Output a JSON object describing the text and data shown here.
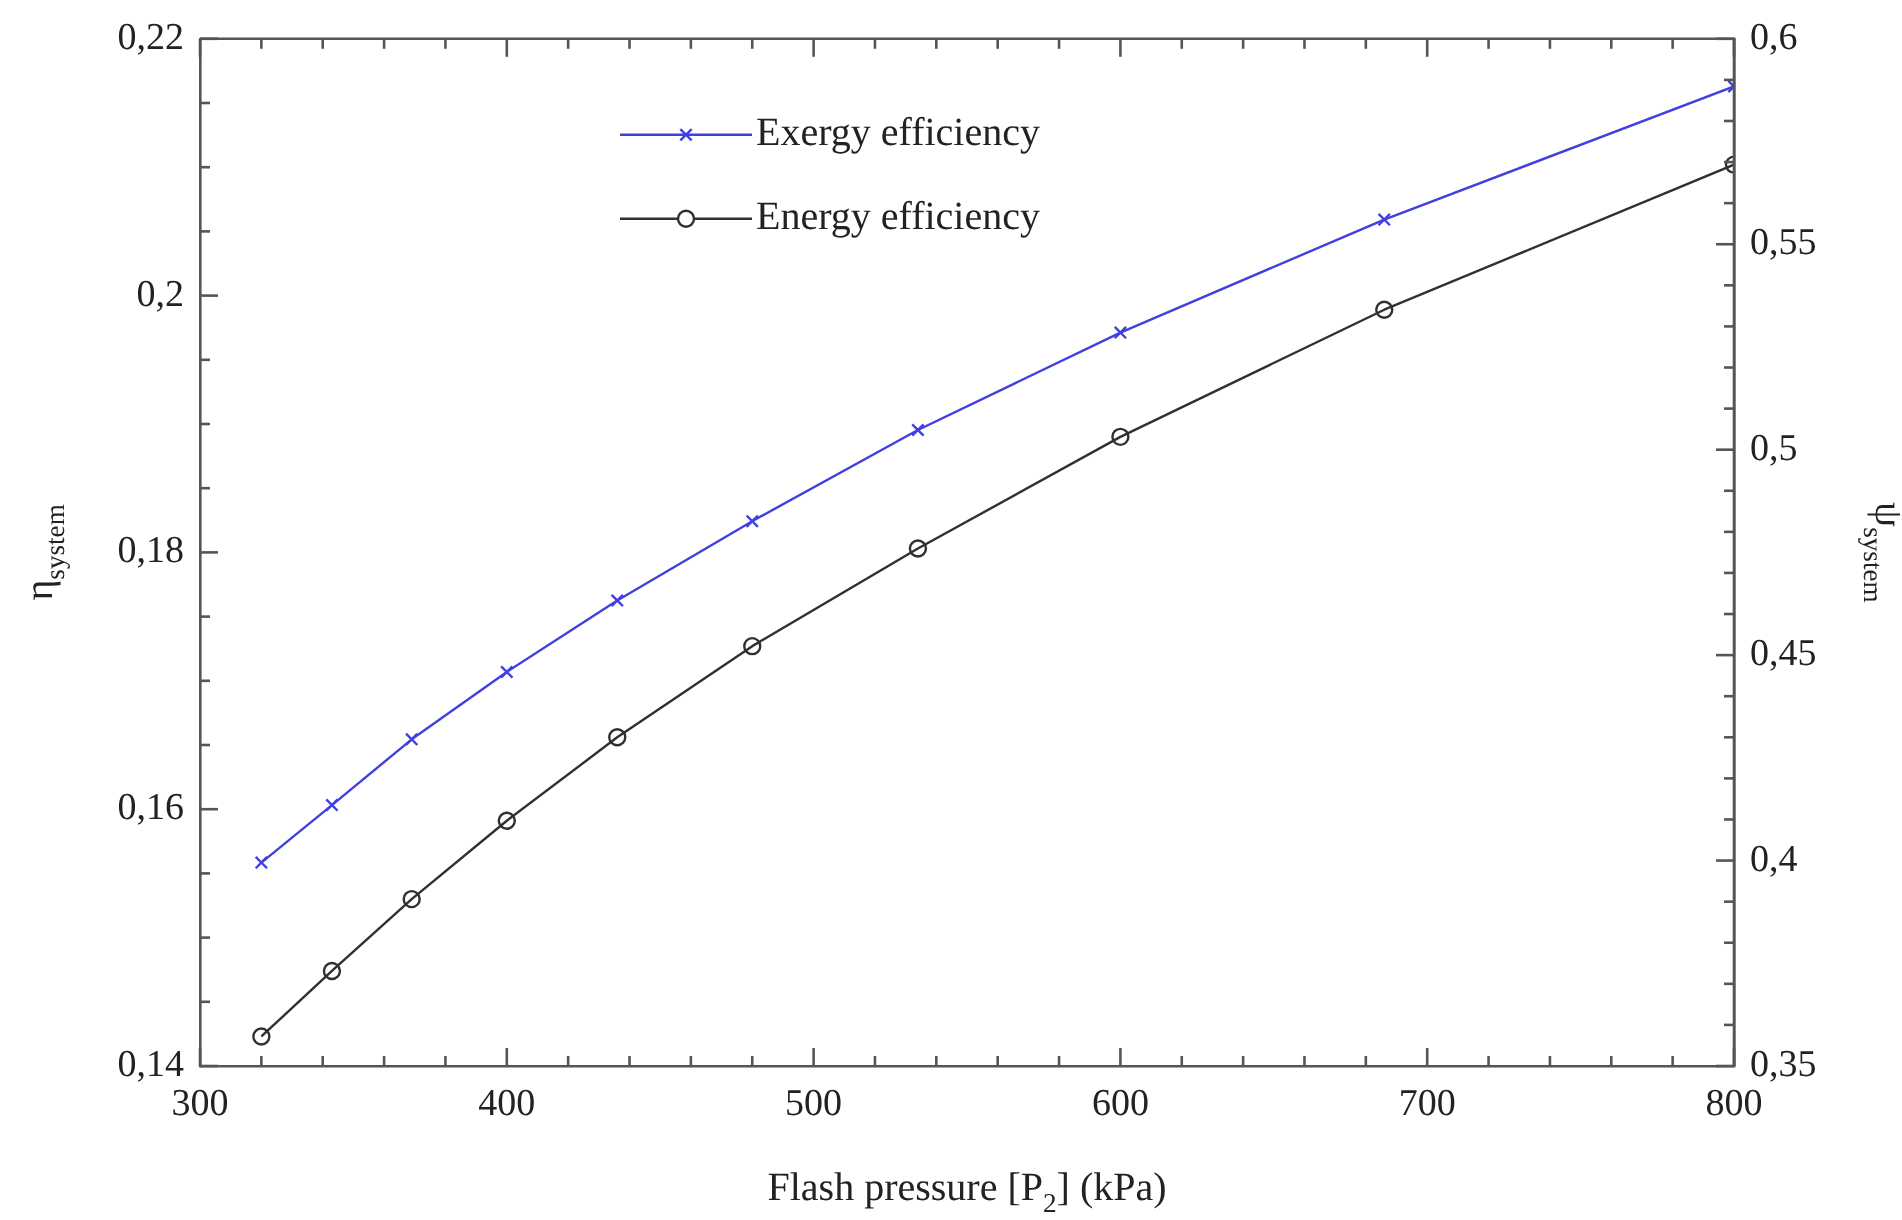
{
  "chart_data": {
    "type": "line",
    "xlabel": "Flash pressure [P$_{2}$] (kPa)",
    "ylabel": "η$_{system}$",
    "y2label": "ψ$_{system}$",
    "x": [
      320,
      343,
      369,
      400,
      436,
      480,
      534,
      600,
      686,
      800
    ],
    "series": [
      {
        "name": "Exergy efficiency",
        "color": "#4040e0",
        "marker": "cross",
        "axis": "y2",
        "values": [
          0.3995,
          0.4135,
          0.4295,
          0.4459,
          0.4633,
          0.4826,
          0.5048,
          0.5285,
          0.556,
          0.5884
        ]
      },
      {
        "name": "Energy efficiency",
        "color": "#303030",
        "marker": "circle",
        "values": [
          0.1423,
          0.1474,
          0.153,
          0.1591,
          0.1656,
          0.1727,
          0.1803,
          0.189,
          0.1989,
          0.2102
        ]
      }
    ],
    "xlim": [
      300,
      800
    ],
    "xticks": [
      300,
      {
        "value": 320,
        "label": null
      },
      {
        "value": 340,
        "label": null
      },
      {
        "value": 360,
        "label": null
      },
      {
        "value": 380,
        "label": null
      },
      400,
      {
        "value": 420,
        "label": null
      },
      {
        "value": 440,
        "label": null
      },
      {
        "value": 460,
        "label": null
      },
      {
        "value": 480,
        "label": null
      },
      500,
      {
        "value": 520,
        "label": null
      },
      {
        "value": 540,
        "label": null
      },
      {
        "value": 560,
        "label": null
      },
      {
        "value": 580,
        "label": null
      },
      600,
      {
        "value": 620,
        "label": null
      },
      {
        "value": 640,
        "label": null
      },
      {
        "value": 660,
        "label": null
      },
      {
        "value": 680,
        "label": null
      },
      700,
      {
        "value": 720,
        "label": null
      },
      {
        "value": 740,
        "label": null
      },
      {
        "value": 760,
        "label": null
      },
      {
        "value": 780,
        "label": null
      },
      800
    ],
    "ylim": [
      0.14,
      0.22
    ],
    "yticks": [
      {
        "value": 0.14,
        "label": "0,14"
      },
      {
        "value": 0.145,
        "label": null
      },
      {
        "value": 0.15,
        "label": null
      },
      {
        "value": 0.155,
        "label": null
      },
      {
        "value": 0.16,
        "label": "0,16"
      },
      {
        "value": 0.165,
        "label": null
      },
      {
        "value": 0.17,
        "label": null
      },
      {
        "value": 0.175,
        "label": null
      },
      {
        "value": 0.18,
        "label": "0,18"
      },
      {
        "value": 0.185,
        "label": null
      },
      {
        "value": 0.19,
        "label": null
      },
      {
        "value": 0.195,
        "label": null
      },
      {
        "value": 0.2,
        "label": "0,2"
      },
      {
        "value": 0.205,
        "label": null
      },
      {
        "value": 0.21,
        "label": null
      },
      {
        "value": 0.215,
        "label": null
      },
      {
        "value": 0.22,
        "label": "0,22"
      }
    ],
    "y2lim": [
      0.35,
      0.6
    ],
    "y2ticks": [
      {
        "value": 0.35,
        "label": "0,35"
      },
      {
        "value": 0.36,
        "label": null
      },
      {
        "value": 0.37,
        "label": null
      },
      {
        "value": 0.38,
        "label": null
      },
      {
        "value": 0.39,
        "label": null
      },
      {
        "value": 0.4,
        "label": "0,4"
      },
      {
        "value": 0.41,
        "label": null
      },
      {
        "value": 0.42,
        "label": null
      },
      {
        "value": 0.43,
        "label": null
      },
      {
        "value": 0.44,
        "label": null
      },
      {
        "value": 0.45,
        "label": "0,45"
      },
      {
        "value": 0.46,
        "label": null
      },
      {
        "value": 0.47,
        "label": null
      },
      {
        "value": 0.48,
        "label": null
      },
      {
        "value": 0.49,
        "label": null
      },
      {
        "value": 0.5,
        "label": "0,5"
      },
      {
        "value": 0.51,
        "label": null
      },
      {
        "value": 0.52,
        "label": null
      },
      {
        "value": 0.53,
        "label": null
      },
      {
        "value": 0.54,
        "label": null
      },
      {
        "value": 0.55,
        "label": "0,55"
      },
      {
        "value": 0.56,
        "label": null
      },
      {
        "value": 0.57,
        "label": null
      },
      {
        "value": 0.58,
        "label": null
      },
      {
        "value": 0.59,
        "label": null
      },
      {
        "value": 0.6,
        "label": "0,6"
      }
    ],
    "grid": false,
    "legend": "top",
    "line_style": "solid"
  }
}
